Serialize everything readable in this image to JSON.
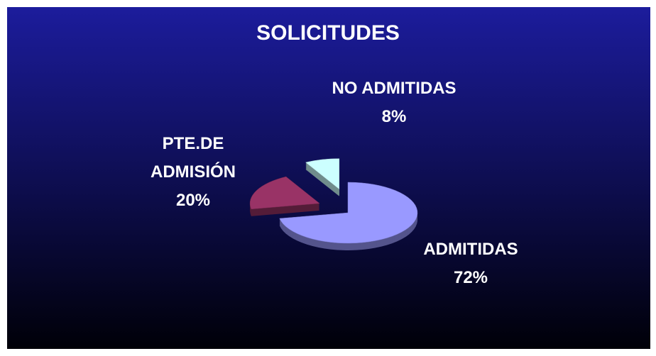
{
  "chart_data": {
    "type": "pie",
    "title": "SOLICITUDES",
    "categories": [
      "ADMITIDAS",
      "PTE.DE ADMISIÓN",
      "NO ADMITIDAS"
    ],
    "values": [
      72,
      20,
      8
    ],
    "value_labels": [
      "72%",
      "20%",
      "8%"
    ],
    "colors": [
      "#9999ff",
      "#993366",
      "#ccffff"
    ]
  }
}
